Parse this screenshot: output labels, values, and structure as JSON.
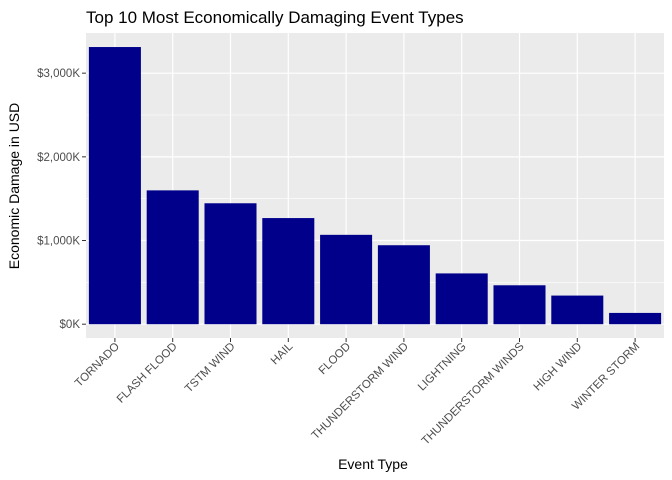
{
  "chart_data": {
    "type": "bar",
    "title": "Top 10 Most Economically Damaging Event Types",
    "xlabel": "Event Type",
    "ylabel": "Economic Damage in USD",
    "categories": [
      "TORNADO",
      "FLASH FLOOD",
      "TSTM WIND",
      "HAIL",
      "FLOOD",
      "THUNDERSTORM WIND",
      "LIGHTNING",
      "THUNDERSTORM WINDS",
      "HIGH WIND",
      "WINTER STORM"
    ],
    "values": [
      3312277,
      1599325,
      1445168,
      1268290,
      1067976,
      943636,
      606932,
      464978,
      342015,
      134700
    ],
    "ylim": [
      -165000,
      3480000
    ],
    "y_ticks": [
      0,
      1000000,
      2000000,
      3000000
    ],
    "y_tick_labels": [
      "$0K",
      "$1,000K",
      "$2,000K",
      "$3,000K"
    ],
    "y_minor_ticks": [
      500000,
      1500000,
      2500000
    ],
    "grid": true,
    "bar_color": "#00008b",
    "panel_color": "#ebebeb",
    "grid_color": "#ffffff"
  }
}
